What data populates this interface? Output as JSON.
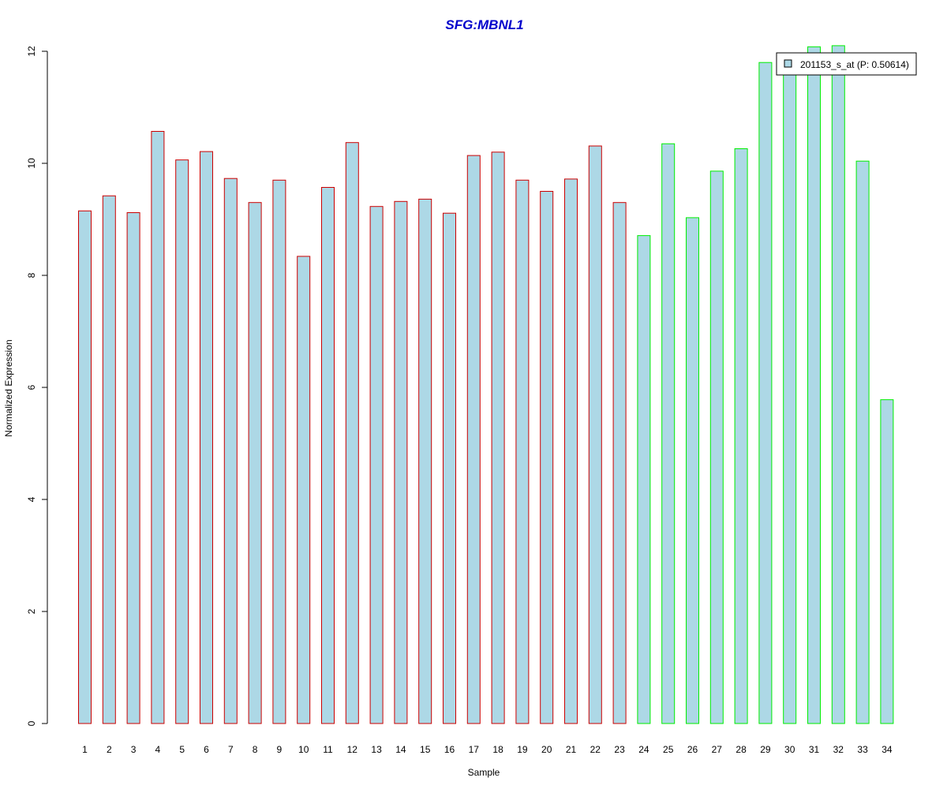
{
  "chart_data": {
    "type": "bar",
    "title": "SFG:MBNL1",
    "xlabel": "Sample",
    "ylabel": "Normalized Expression",
    "ylim": [
      0,
      12
    ],
    "yticks": [
      0,
      2,
      4,
      6,
      8,
      10,
      12
    ],
    "grid": false,
    "legend_position": "top-right",
    "categories": [
      "1",
      "2",
      "3",
      "4",
      "5",
      "6",
      "7",
      "8",
      "9",
      "10",
      "11",
      "12",
      "13",
      "14",
      "15",
      "16",
      "17",
      "18",
      "19",
      "20",
      "21",
      "22",
      "23",
      "24",
      "25",
      "26",
      "27",
      "28",
      "29",
      "30",
      "31",
      "32",
      "33",
      "34"
    ],
    "series": [
      {
        "name": "201153_s_at (P: 0.50614)",
        "values": [
          9.15,
          9.42,
          9.12,
          10.57,
          10.06,
          10.21,
          9.73,
          9.3,
          9.7,
          8.34,
          9.57,
          10.37,
          9.23,
          9.32,
          9.36,
          9.11,
          10.14,
          10.2,
          9.7,
          9.5,
          9.72,
          10.31,
          9.3,
          8.71,
          10.35,
          9.03,
          9.86,
          10.26,
          11.8,
          11.65,
          12.08,
          12.1,
          10.04,
          5.78
        ],
        "group_count_red": 23
      }
    ],
    "colors": {
      "fill": "#add8e6",
      "group1_border": "#cc0000",
      "group2_border": "#00ee00",
      "title": "#0000cc",
      "axis": "#000000"
    }
  }
}
